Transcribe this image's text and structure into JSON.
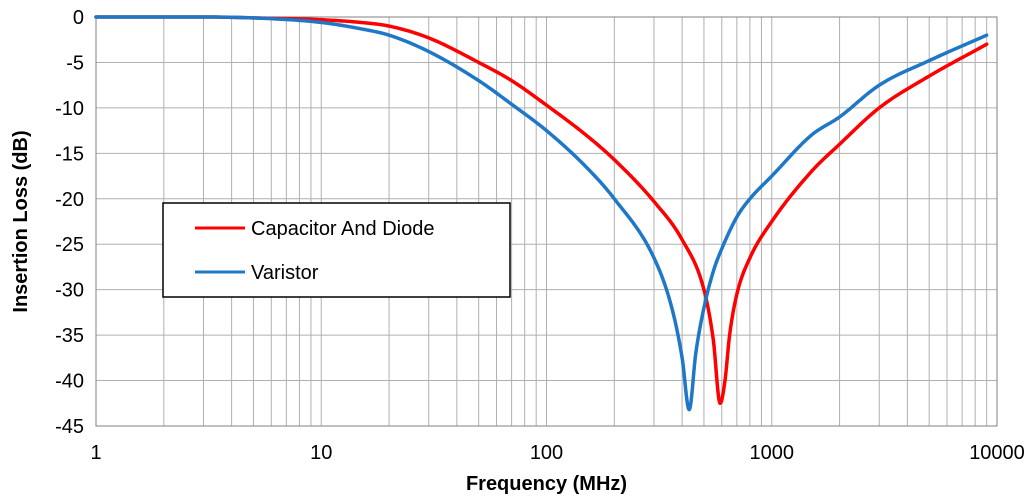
{
  "chart_data": {
    "type": "line",
    "title": "",
    "xlabel": "Frequency (MHz)",
    "ylabel": "Insertion Loss (dB)",
    "x_scale": "log",
    "xlim": [
      1,
      10000
    ],
    "ylim": [
      -45,
      0
    ],
    "x_ticks": [
      1,
      10,
      100,
      1000,
      10000
    ],
    "x_tick_labels": [
      "1",
      "10",
      "100",
      "1000",
      "10000"
    ],
    "y_ticks": [
      0,
      -5,
      -10,
      -15,
      -20,
      -25,
      -30,
      -35,
      -40,
      -45
    ],
    "y_tick_labels": [
      "0",
      "-5",
      "-10",
      "-15",
      "-20",
      "-25",
      "-30",
      "-35",
      "-40",
      "-45"
    ],
    "grid": true,
    "legend_position": "left-center",
    "series": [
      {
        "name": "Capacitor And Diode",
        "color": "#ff0000",
        "x": [
          1,
          2,
          3,
          5,
          10,
          15,
          20,
          30,
          50,
          70,
          100,
          150,
          200,
          300,
          400,
          500,
          550,
          590,
          620,
          650,
          700,
          800,
          1000,
          1500,
          2000,
          3000,
          5000,
          9000
        ],
        "y": [
          0,
          0,
          0,
          -0.1,
          -0.3,
          -0.6,
          -1.0,
          -2.3,
          -5.0,
          -7.0,
          -9.7,
          -13.0,
          -15.7,
          -20.3,
          -24.5,
          -30.0,
          -35.5,
          -42.5,
          -40.0,
          -35.0,
          -30.5,
          -26.5,
          -22.5,
          -17.0,
          -14.0,
          -10.0,
          -6.5,
          -3.0
        ]
      },
      {
        "name": "Varistor",
        "color": "#1f77c8",
        "x": [
          1,
          2,
          3,
          5,
          10,
          15,
          20,
          30,
          50,
          70,
          100,
          150,
          200,
          300,
          360,
          400,
          430,
          460,
          500,
          550,
          600,
          700,
          800,
          1000,
          1500,
          2000,
          3000,
          5000,
          9000
        ],
        "y": [
          0,
          0,
          0,
          -0.1,
          -0.6,
          -1.3,
          -2.0,
          -3.8,
          -7.0,
          -9.6,
          -12.5,
          -16.5,
          -20.0,
          -26.5,
          -32.0,
          -37.5,
          -43.2,
          -37.0,
          -32.0,
          -28.0,
          -25.5,
          -22.0,
          -20.0,
          -17.5,
          -13.0,
          -11.0,
          -7.5,
          -4.8,
          -2.0
        ]
      }
    ]
  }
}
